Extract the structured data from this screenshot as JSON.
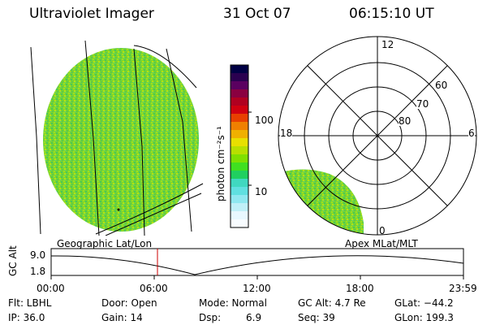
{
  "header": {
    "title": "Ultraviolet Imager",
    "date": "31 Oct 07",
    "time": "06:15:10 UT"
  },
  "colorbar": {
    "label": "photon cm⁻²s⁻¹",
    "ticks": [
      "100",
      "10"
    ],
    "colors": [
      "#000044",
      "#2a0050",
      "#5a0060",
      "#8a0040",
      "#b00020",
      "#d00010",
      "#e84000",
      "#f08000",
      "#f0b000",
      "#e8e000",
      "#b8e000",
      "#80e000",
      "#40e020",
      "#20d060",
      "#40d8c0",
      "#60e0e0",
      "#90e8f0",
      "#c0f0f8",
      "#e8f8ff",
      "#f8fcff"
    ]
  },
  "left_panel": {
    "caption": "Geographic Lat/Lon"
  },
  "right_panel": {
    "caption": "Apex  MLat/MLT",
    "mlt_labels": [
      "12",
      "18",
      "6",
      "0"
    ],
    "lat_labels": [
      "60",
      "70",
      "80"
    ]
  },
  "altitude_plot": {
    "ylabel": "GC Alt",
    "y_ticks": [
      "9.0",
      "1.8"
    ],
    "x_ticks": [
      "00:00",
      "06:00",
      "12:00",
      "18:00",
      "23:59"
    ],
    "current_time_color": "#cc0000"
  },
  "info": {
    "flt": "Flt: LBHL",
    "ip": "IP: 36.0",
    "door": "Door: Open",
    "gain": "Gain: 14",
    "mode": "Mode: Normal",
    "dsp_label": "Dsp:",
    "dsp_value": "6.9",
    "gcalt": "GC Alt: 4.7 Re",
    "seq": "Seq: 39",
    "glat": "GLat: −44.2",
    "glon": "GLon: 199.3"
  }
}
